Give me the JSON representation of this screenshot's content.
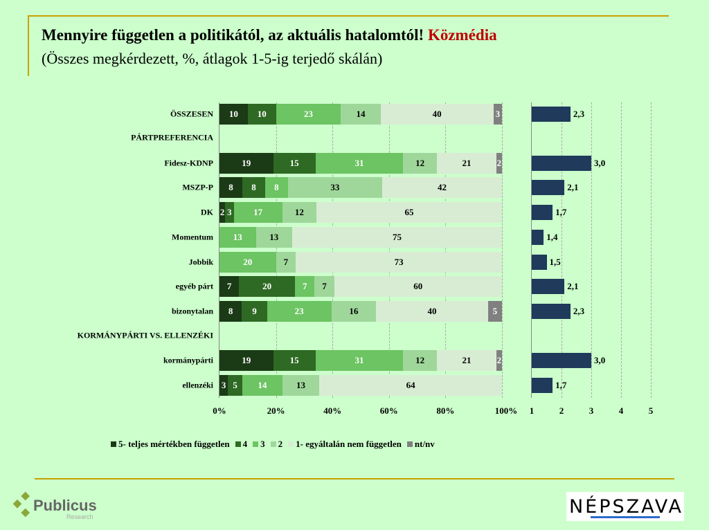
{
  "title": {
    "main": "Mennyire független a politikától, az aktuális hatalomtól!",
    "accent": "Közmédia",
    "subtitle": "(Összes megkérdezett, %, átlagok 1-5-ig terjedő skálán)",
    "accent_color": "#c00000"
  },
  "chart_data": [
    {
      "type": "bar",
      "orientation": "horizontal",
      "stacked": true,
      "percent": true,
      "categories": [
        "ÖSSZESEN",
        "PÁRTPREFERENCIA",
        "Fidesz-KDNP",
        "MSZP-P",
        "DK",
        "Momentum",
        "Jobbik",
        "egyéb párt",
        "bizonytalan",
        "KORMÁNYPÁRTI VS. ELLENZÉKI",
        "kormánypárti",
        "ellenzéki"
      ],
      "series": [
        {
          "name": "5- teljes mértékben független",
          "color": "#1b3a16",
          "values": [
            10,
            null,
            19,
            8,
            2,
            null,
            null,
            7,
            8,
            null,
            19,
            3
          ]
        },
        {
          "name": "4",
          "color": "#2e6a23",
          "values": [
            10,
            null,
            15,
            8,
            3,
            null,
            null,
            20,
            9,
            null,
            15,
            5
          ]
        },
        {
          "name": "3",
          "color": "#6cc462",
          "values": [
            23,
            null,
            31,
            8,
            17,
            13,
            20,
            7,
            23,
            null,
            31,
            14
          ]
        },
        {
          "name": "2",
          "color": "#9fd79a",
          "values": [
            14,
            null,
            12,
            33,
            12,
            13,
            7,
            7,
            16,
            null,
            12,
            13
          ]
        },
        {
          "name": "1- egyáltalán nem független",
          "color": "#d8ecd4",
          "values": [
            40,
            null,
            21,
            42,
            65,
            75,
            73,
            60,
            40,
            null,
            21,
            64
          ]
        },
        {
          "name": "nt/nv",
          "color": "#808080",
          "values": [
            3,
            null,
            2,
            null,
            null,
            null,
            null,
            null,
            5,
            null,
            2,
            null
          ]
        }
      ],
      "xticks": [
        "0%",
        "20%",
        "40%",
        "60%",
        "80%",
        "100%"
      ],
      "xlim": [
        0,
        100
      ],
      "grid": "vertical dashed",
      "legend": "bottom"
    },
    {
      "type": "bar",
      "orientation": "horizontal",
      "color": "#1f3a5a",
      "categories": [
        "ÖSSZESEN",
        "PÁRTPREFERENCIA",
        "Fidesz-KDNP",
        "MSZP-P",
        "DK",
        "Momentum",
        "Jobbik",
        "egyéb párt",
        "bizonytalan",
        "KORMÁNYPÁRTI VS. ELLENZÉKI",
        "kormánypárti",
        "ellenzéki"
      ],
      "values": [
        2.3,
        null,
        3.0,
        2.1,
        1.7,
        1.4,
        1.5,
        2.1,
        2.3,
        null,
        3.0,
        1.7
      ],
      "labels": [
        "2,3",
        "",
        "3,0",
        "2,1",
        "1,7",
        "1,4",
        "1,5",
        "2,1",
        "2,3",
        "",
        "3,0",
        "1,7"
      ],
      "xticks": [
        "1",
        "2",
        "3",
        "4",
        "5"
      ],
      "xlim": [
        1,
        5
      ],
      "grid": "vertical dashed"
    }
  ],
  "logos": {
    "left": "Publicus",
    "left_sub": "Research",
    "right": "NÉPSZAVA"
  }
}
